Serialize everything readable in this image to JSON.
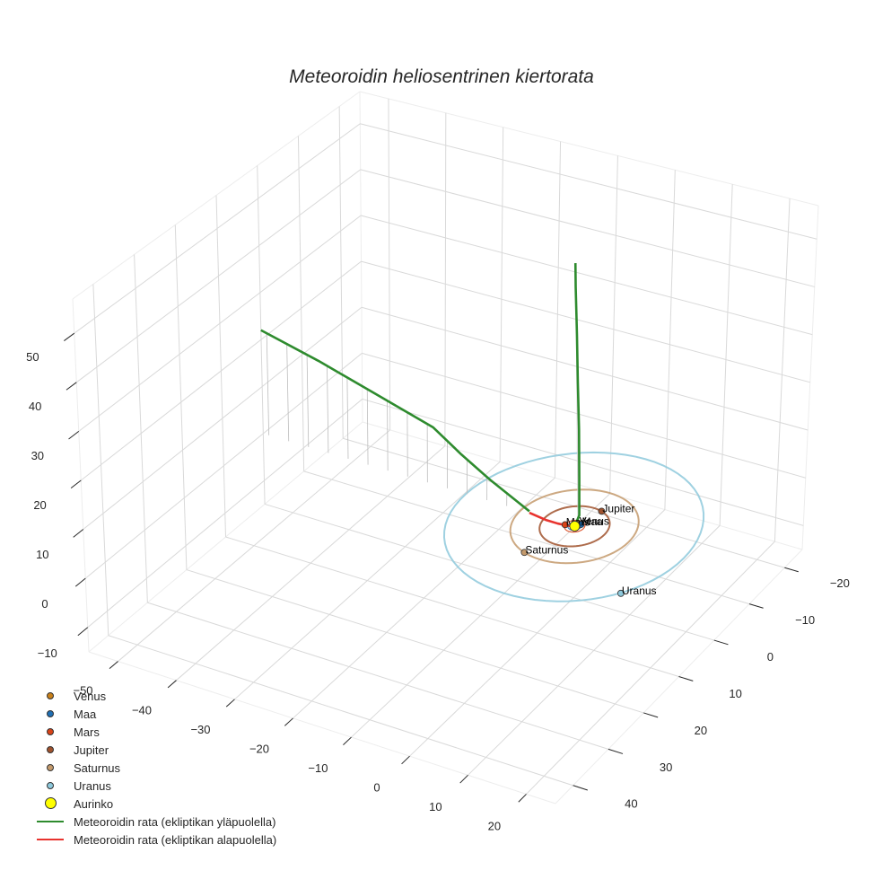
{
  "title": "Meteoroidin heliosentrinen kiertorata",
  "colors": {
    "grid": "#d9d9d9",
    "pane_edge": "#ededed",
    "tick": "#262626",
    "text": "#262626",
    "above": "#2e8b2e",
    "below": "#e8332e",
    "shadow": "#c8c8c8"
  },
  "legend": [
    {
      "label": "Venus",
      "kind": "dot",
      "color": "#c8801a"
    },
    {
      "label": "Maa",
      "kind": "dot",
      "color": "#1f6fb4"
    },
    {
      "label": "Mars",
      "kind": "dot",
      "color": "#d94318"
    },
    {
      "label": "Jupiter",
      "kind": "dot",
      "color": "#a0522d"
    },
    {
      "label": "Saturnus",
      "kind": "dot",
      "color": "#c49a6c"
    },
    {
      "label": "Uranus",
      "kind": "dot",
      "color": "#8ec9dc"
    },
    {
      "label": "Aurinko",
      "kind": "bigdot",
      "color": "#ffff00"
    },
    {
      "label": "Meteoroidin rata (ekliptikan yläpuolella)",
      "kind": "line",
      "color": "#2e8b2e"
    },
    {
      "label": "Meteoroidin rata (ekliptikan alapuolella)",
      "kind": "line",
      "color": "#e8332e"
    }
  ],
  "chart_data": {
    "type": "line3d",
    "title": "Meteoroidin heliosentrinen kiertorata",
    "xlabel": "",
    "ylabel": "",
    "zlabel": "",
    "x_ticks": [
      -50,
      -40,
      -30,
      -20,
      -10,
      0,
      10,
      20
    ],
    "y_ticks": [
      -20,
      -10,
      0,
      10,
      20,
      30,
      40
    ],
    "z_ticks": [
      -10,
      0,
      10,
      20,
      30,
      40,
      50
    ],
    "xlim": [
      -55,
      25
    ],
    "ylim": [
      -25,
      45
    ],
    "zlim": [
      -15,
      57
    ],
    "grid": true,
    "legend_position": "lower left",
    "planets": [
      {
        "name": "Venus",
        "x": 0.2,
        "y": -0.7,
        "z": 0,
        "orbit_r": 0.72,
        "color": "#c8801a"
      },
      {
        "name": "Maa",
        "x": 0.6,
        "y": -0.8,
        "z": 0,
        "orbit_r": 1.0,
        "color": "#1f6fb4"
      },
      {
        "name": "Mars",
        "x": -1.5,
        "y": 0.3,
        "z": 0,
        "orbit_r": 1.52,
        "color": "#d94318"
      },
      {
        "name": "Jupiter",
        "x": 1.5,
        "y": -5.0,
        "z": 0,
        "orbit_r": 5.2,
        "color": "#a0522d"
      },
      {
        "name": "Saturnus",
        "x": -3.0,
        "y": 9.0,
        "z": 0,
        "orbit_r": 9.5,
        "color": "#c49a6c"
      },
      {
        "name": "Uranus",
        "x": 15.5,
        "y": 11.5,
        "z": 0,
        "orbit_r": 19.2,
        "color": "#8ec9dc"
      }
    ],
    "sun": {
      "name": "Aurinko",
      "x": 0,
      "y": 0,
      "z": 0,
      "color": "#ffff00"
    },
    "series": [
      {
        "name": "Meteoroidin rata (ekliptikan yläpuolella) - incoming",
        "points": [
          [
            -55,
            0,
            22
          ],
          [
            -45,
            0,
            19
          ],
          [
            -35,
            0,
            15.5
          ],
          [
            -25,
            0,
            12
          ],
          [
            -20,
            0,
            8
          ],
          [
            -15,
            0,
            4.5
          ],
          [
            -10,
            0,
            1.5
          ],
          [
            -8,
            0,
            0.3
          ]
        ]
      },
      {
        "name": "Meteoroidin rata (ekliptikan alapuolella)",
        "points": [
          [
            -8,
            0,
            0
          ],
          [
            -5,
            0,
            -0.5
          ],
          [
            -3,
            0,
            -0.5
          ],
          [
            -1,
            0,
            -0.3
          ],
          [
            0,
            0,
            0
          ]
        ]
      },
      {
        "name": "Meteoroidin rata (ekliptikan yläpuolella) - outgoing",
        "points": [
          [
            0,
            0,
            0
          ],
          [
            0.4,
            -0.6,
            2
          ],
          [
            0.3,
            -0.6,
            10
          ],
          [
            0.2,
            -0.5,
            20
          ],
          [
            0.0,
            -0.3,
            30
          ],
          [
            -0.2,
            -0.2,
            40
          ],
          [
            -0.4,
            0,
            50
          ],
          [
            -0.5,
            0,
            55
          ]
        ]
      }
    ]
  }
}
